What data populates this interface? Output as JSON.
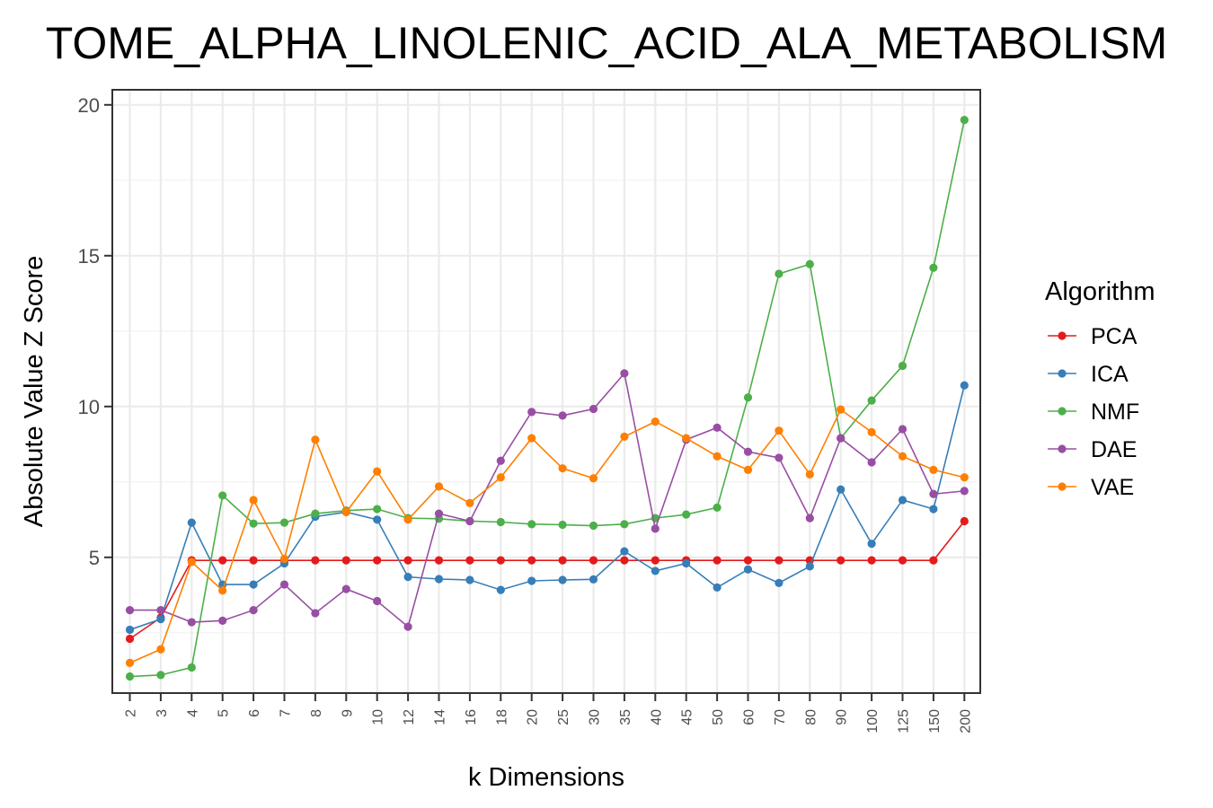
{
  "chart_data": {
    "type": "line",
    "title": "TOME_ALPHA_LINOLENIC_ACID_ALA_METABOLISM",
    "xlabel": "k Dimensions",
    "ylabel": "Absolute Value Z Score",
    "ylim": [
      0.5,
      20.5
    ],
    "yticks": [
      5,
      10,
      15,
      20
    ],
    "grid": true,
    "legend": {
      "title": "Algorithm",
      "position": "right"
    },
    "categories": [
      "2",
      "3",
      "4",
      "5",
      "6",
      "7",
      "8",
      "9",
      "10",
      "12",
      "14",
      "16",
      "18",
      "20",
      "25",
      "30",
      "35",
      "40",
      "45",
      "50",
      "60",
      "70",
      "80",
      "90",
      "100",
      "125",
      "150",
      "200"
    ],
    "series": [
      {
        "name": "PCA",
        "color": "#E41A1C",
        "values": [
          2.3,
          3.0,
          4.9,
          4.9,
          4.9,
          4.9,
          4.9,
          4.9,
          4.9,
          4.9,
          4.9,
          4.9,
          4.9,
          4.9,
          4.9,
          4.9,
          4.9,
          4.9,
          4.9,
          4.9,
          4.9,
          4.9,
          4.9,
          4.9,
          4.9,
          4.9,
          4.9,
          6.2
        ]
      },
      {
        "name": "ICA",
        "color": "#377EB8",
        "values": [
          2.6,
          2.95,
          6.15,
          4.1,
          4.1,
          4.8,
          6.35,
          6.5,
          6.25,
          4.35,
          4.28,
          4.25,
          3.92,
          4.22,
          4.25,
          4.27,
          5.2,
          4.55,
          4.8,
          4.0,
          4.6,
          4.15,
          4.7,
          7.25,
          5.45,
          6.9,
          6.6,
          10.7
        ]
      },
      {
        "name": "NMF",
        "color": "#4DAF4A",
        "values": [
          1.05,
          1.1,
          1.35,
          7.05,
          6.12,
          6.15,
          6.45,
          6.55,
          6.6,
          6.3,
          6.28,
          6.2,
          6.17,
          6.1,
          6.08,
          6.05,
          6.1,
          6.3,
          6.42,
          6.65,
          10.3,
          14.4,
          14.72,
          8.95,
          10.2,
          11.35,
          14.6,
          19.5
        ]
      },
      {
        "name": "DAE",
        "color": "#984EA3",
        "values": [
          3.25,
          3.25,
          2.85,
          2.9,
          3.25,
          4.1,
          3.15,
          3.95,
          3.55,
          2.7,
          6.45,
          6.2,
          8.2,
          9.82,
          9.7,
          9.92,
          11.1,
          5.95,
          8.9,
          9.3,
          8.5,
          8.3,
          6.3,
          8.95,
          8.15,
          9.25,
          7.1,
          7.2
        ]
      },
      {
        "name": "VAE",
        "color": "#FF7F00",
        "values": [
          1.5,
          1.95,
          4.85,
          3.9,
          6.9,
          4.95,
          8.9,
          6.5,
          7.85,
          6.25,
          7.35,
          6.8,
          7.65,
          8.95,
          7.95,
          7.62,
          9.0,
          9.5,
          8.95,
          8.35,
          7.9,
          9.2,
          7.75,
          9.9,
          9.15,
          8.35,
          7.9,
          7.65
        ]
      }
    ]
  }
}
